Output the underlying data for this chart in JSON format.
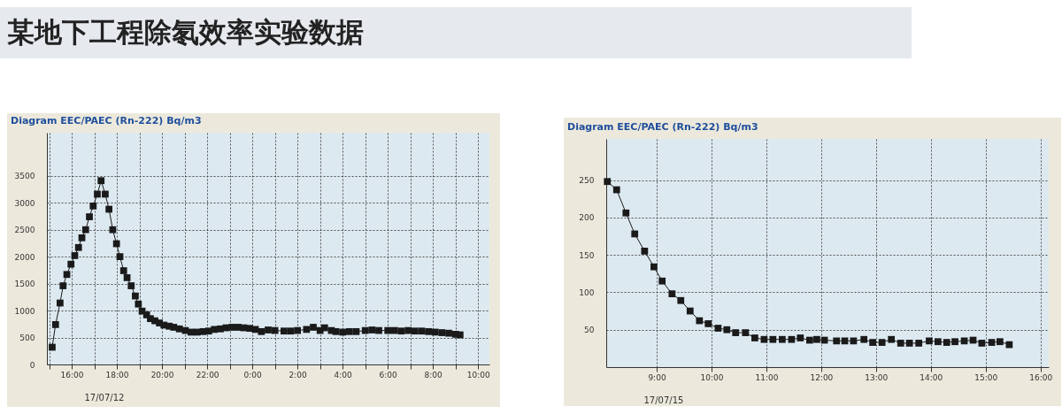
{
  "chart_data": [
    {
      "type": "line",
      "title": "Diagram EEC/PAEC (Rn-222)    Bq/m3",
      "xlabel": "17/07/12",
      "annotations": [
        "某地下工程除氡效率实验数据"
      ],
      "color": "#1a1a1a",
      "marker": "square",
      "line_style": "solid",
      "grid": true,
      "xlim": [
        "--07-12T14:54",
        "--07-13T10:30"
      ],
      "ylim": [
        0,
        4300
      ],
      "xticks": [
        {
          "value": "--07-12T15:00",
          "label": null
        },
        {
          "value": "--07-12T16:00",
          "label": "16:00"
        },
        {
          "value": "--07-12T17:00",
          "label": null
        },
        {
          "value": "--07-12T18:00",
          "label": "18:00"
        },
        {
          "value": "--07-12T19:00",
          "label": null
        },
        {
          "value": "--07-12T20:00",
          "label": "20:00"
        },
        {
          "value": "--07-12T21:00",
          "label": null
        },
        {
          "value": "--07-12T22:00",
          "label": "22:00"
        },
        {
          "value": "--07-12T23:00",
          "label": null
        },
        {
          "value": "--07-13T00:00",
          "label": "0:00"
        },
        {
          "value": "--07-13T01:00",
          "label": null
        },
        {
          "value": "--07-13T02:00",
          "label": "2:00"
        },
        {
          "value": "--07-13T03:00",
          "label": null
        },
        {
          "value": "--07-13T04:00",
          "label": "4:00"
        },
        {
          "value": "--07-13T05:00",
          "label": null
        },
        {
          "value": "--07-13T06:00",
          "label": "6:00"
        },
        {
          "value": "--07-13T07:00",
          "label": null
        },
        {
          "value": "--07-13T08:00",
          "label": "8:00"
        },
        {
          "value": "--07-13T09:00",
          "label": null
        },
        {
          "value": "--07-13T10:00",
          "label": "10:00"
        }
      ],
      "yticks": [
        0,
        500,
        1000,
        1500,
        2000,
        2500,
        3000,
        3500
      ],
      "x": [
        "--07-12T15:08",
        "--07-12T15:17",
        "--07-12T15:29",
        "--07-12T15:37",
        "--07-12T15:47",
        "--07-12T15:58",
        "--07-12T16:08",
        "--07-12T16:18",
        "--07-12T16:27",
        "--07-12T16:37",
        "--07-12T16:47",
        "--07-12T16:57",
        "--07-12T17:08",
        "--07-12T17:18",
        "--07-12T17:29",
        "--07-12T17:39",
        "--07-12T17:49",
        "--07-12T17:59",
        "--07-12T18:08",
        "--07-12T18:18",
        "--07-12T18:27",
        "--07-12T18:38",
        "--07-12T18:49",
        "--07-12T18:57",
        "--07-12T19:07",
        "--07-12T19:19",
        "--07-12T19:29",
        "--07-12T19:41",
        "--07-12T19:53",
        "--07-12T20:05",
        "--07-12T20:19",
        "--07-12T20:31",
        "--07-12T20:46",
        "--07-12T21:02",
        "--07-12T21:17",
        "--07-12T21:33",
        "--07-12T21:49",
        "--07-12T22:04",
        "--07-12T22:19",
        "--07-12T22:35",
        "--07-12T22:50",
        "--07-12T23:06",
        "--07-12T23:22",
        "--07-12T23:37",
        "--07-12T23:53",
        "--07-13T00:08",
        "--07-13T00:24",
        "--07-13T00:42",
        "--07-13T01:00",
        "--07-13T01:24",
        "--07-13T01:42",
        "--07-13T02:00",
        "--07-13T02:24",
        "--07-13T02:42",
        "--07-13T03:00",
        "--07-13T03:12",
        "--07-13T03:30",
        "--07-13T03:42",
        "--07-13T04:00",
        "--07-13T04:18",
        "--07-13T04:36",
        "--07-13T05:00",
        "--07-13T05:18",
        "--07-13T05:36",
        "--07-13T06:00",
        "--07-13T06:18",
        "--07-13T06:36",
        "--07-13T06:54",
        "--07-13T07:12",
        "--07-13T07:30",
        "--07-13T07:48",
        "--07-13T08:06",
        "--07-13T08:24",
        "--07-13T08:42",
        "--07-13T09:00",
        "--07-13T09:12"
      ],
      "values": [
        320,
        740,
        1140,
        1460,
        1670,
        1860,
        2020,
        2170,
        2350,
        2500,
        2740,
        2940,
        3160,
        3410,
        3160,
        2880,
        2500,
        2240,
        2000,
        1740,
        1610,
        1460,
        1270,
        1120,
        990,
        920,
        850,
        810,
        770,
        730,
        710,
        690,
        660,
        630,
        600,
        600,
        610,
        620,
        650,
        660,
        680,
        690,
        690,
        680,
        670,
        650,
        610,
        640,
        630,
        620,
        620,
        630,
        650,
        690,
        630,
        680,
        630,
        610,
        600,
        610,
        610,
        630,
        640,
        630,
        630,
        630,
        620,
        630,
        620,
        620,
        610,
        600,
        590,
        580,
        560,
        550
      ]
    },
    {
      "type": "line",
      "title": "Diagram EEC/PAEC (Rn-222)    Bq/m3",
      "xlabel": "17/07/15",
      "color": "#1a1a1a",
      "marker": "square",
      "line_style": "solid",
      "grid": true,
      "xlim": [
        8.08,
        16.15
      ],
      "ylim": [
        0,
        305
      ],
      "xticks": [
        {
          "value": 9,
          "label": "9:00"
        },
        {
          "value": 10,
          "label": "10:00"
        },
        {
          "value": 11,
          "label": "11:00"
        },
        {
          "value": 12,
          "label": "12:00"
        },
        {
          "value": 13,
          "label": "13:00"
        },
        {
          "value": 14,
          "label": "14:00"
        },
        {
          "value": 15,
          "label": "15:00"
        },
        {
          "value": 16,
          "label": "16:00"
        }
      ],
      "yticks": [
        50,
        100,
        150,
        200,
        250
      ],
      "x": [
        8.1,
        8.27,
        8.44,
        8.6,
        8.78,
        8.95,
        9.1,
        9.28,
        9.44,
        9.61,
        9.78,
        9.94,
        10.12,
        10.28,
        10.44,
        10.62,
        10.79,
        10.96,
        11.12,
        11.29,
        11.46,
        11.62,
        11.79,
        11.92,
        12.06,
        12.28,
        12.43,
        12.59,
        12.78,
        12.94,
        13.11,
        13.28,
        13.45,
        13.61,
        13.78,
        13.97,
        14.13,
        14.29,
        14.44,
        14.61,
        14.77,
        14.93,
        15.11,
        15.26,
        15.43
      ],
      "values": [
        248,
        237,
        206,
        178,
        155,
        134,
        115,
        98,
        89,
        75,
        62,
        58,
        52,
        50,
        46,
        46,
        39,
        37,
        37,
        37,
        37,
        39,
        36,
        37,
        36,
        35,
        35,
        35,
        37,
        33,
        33,
        37,
        32,
        32,
        32,
        35,
        34,
        33,
        34,
        35,
        36,
        32,
        33,
        34,
        30
      ]
    }
  ]
}
